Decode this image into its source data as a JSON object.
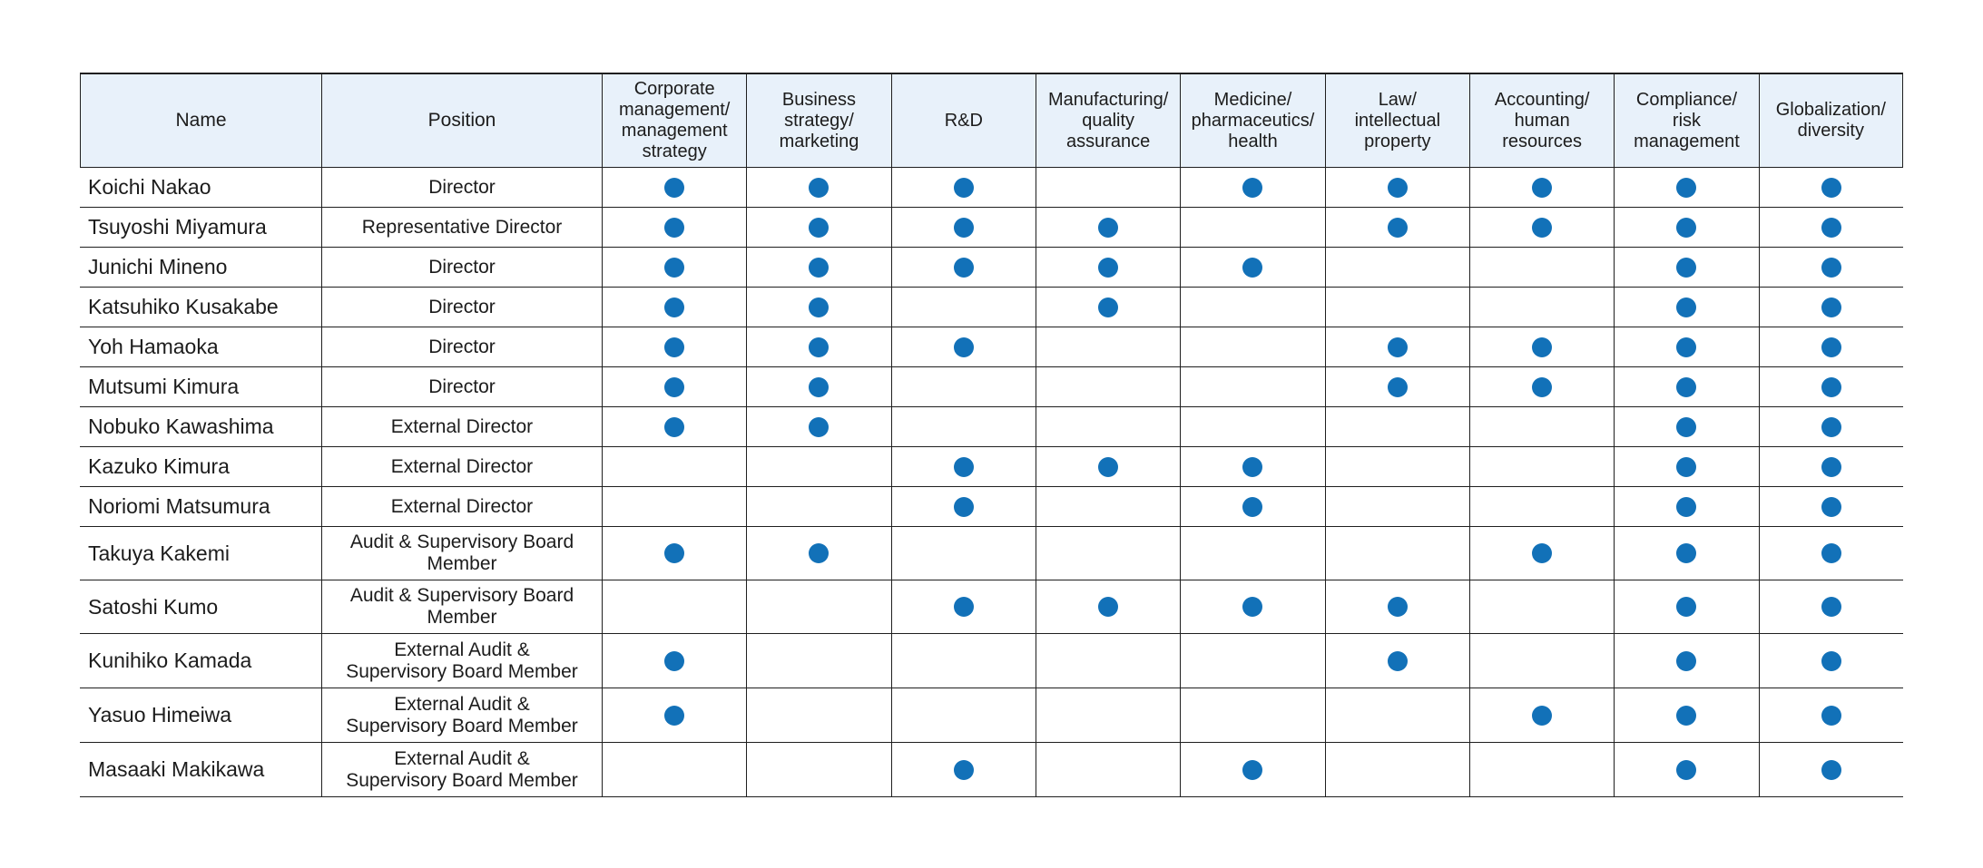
{
  "colors": {
    "dot_blue": "#1271b8",
    "header_bg": "#e8f1fa",
    "border": "#1f1f1f",
    "text": "#1c1c1c"
  },
  "table": {
    "header": {
      "name_label": "Name",
      "position_label": "Position",
      "skill_columns": [
        "Corporate\nmanagement/\nmanagement\nstrategy",
        "Business\nstrategy/\nmarketing",
        "R&D",
        "Manufacturing/\nquality\nassurance",
        "Medicine/\npharmaceutics/\nhealth",
        "Law/\nintellectual\nproperty",
        "Accounting/\nhuman\nresources",
        "Compliance/\nrisk\nmanagement",
        "Globalization/\ndiversity"
      ]
    },
    "dot_symbol": "filled-circle",
    "rows": [
      {
        "name": "Koichi Nakao",
        "position": "Director",
        "skills": [
          1,
          1,
          1,
          0,
          1,
          1,
          1,
          1,
          1
        ]
      },
      {
        "name": "Tsuyoshi Miyamura",
        "position": "Representative Director",
        "skills": [
          1,
          1,
          1,
          1,
          0,
          1,
          1,
          1,
          1
        ]
      },
      {
        "name": "Junichi Mineno",
        "position": "Director",
        "skills": [
          1,
          1,
          1,
          1,
          1,
          0,
          0,
          1,
          1
        ]
      },
      {
        "name": "Katsuhiko Kusakabe",
        "position": "Director",
        "skills": [
          1,
          1,
          0,
          1,
          0,
          0,
          0,
          1,
          1
        ]
      },
      {
        "name": "Yoh Hamaoka",
        "position": "Director",
        "skills": [
          1,
          1,
          1,
          0,
          0,
          1,
          1,
          1,
          1
        ]
      },
      {
        "name": "Mutsumi Kimura",
        "position": "Director",
        "skills": [
          1,
          1,
          0,
          0,
          0,
          1,
          1,
          1,
          1
        ]
      },
      {
        "name": "Nobuko Kawashima",
        "position": "External Director",
        "skills": [
          1,
          1,
          0,
          0,
          0,
          0,
          0,
          1,
          1
        ]
      },
      {
        "name": "Kazuko Kimura",
        "position": "External Director",
        "skills": [
          0,
          0,
          1,
          1,
          1,
          0,
          0,
          1,
          1
        ]
      },
      {
        "name": "Noriomi Matsumura",
        "position": "External Director",
        "skills": [
          0,
          0,
          1,
          0,
          1,
          0,
          0,
          1,
          1
        ]
      },
      {
        "name": "Takuya Kakemi",
        "position": "Audit & Supervisory Board\nMember",
        "skills": [
          1,
          1,
          0,
          0,
          0,
          0,
          1,
          1,
          1
        ]
      },
      {
        "name": "Satoshi Kumo",
        "position": "Audit & Supervisory Board\nMember",
        "skills": [
          0,
          0,
          1,
          1,
          1,
          1,
          0,
          1,
          1
        ]
      },
      {
        "name": "Kunihiko Kamada",
        "position": "External Audit &\nSupervisory Board Member",
        "skills": [
          1,
          0,
          0,
          0,
          0,
          1,
          0,
          1,
          1
        ]
      },
      {
        "name": "Yasuo Himeiwa",
        "position": "External Audit &\nSupervisory Board Member",
        "skills": [
          1,
          0,
          0,
          0,
          0,
          0,
          1,
          1,
          1
        ]
      },
      {
        "name": "Masaaki Makikawa",
        "position": "External Audit &\nSupervisory Board Member",
        "skills": [
          0,
          0,
          1,
          0,
          1,
          0,
          0,
          1,
          1
        ]
      }
    ]
  }
}
